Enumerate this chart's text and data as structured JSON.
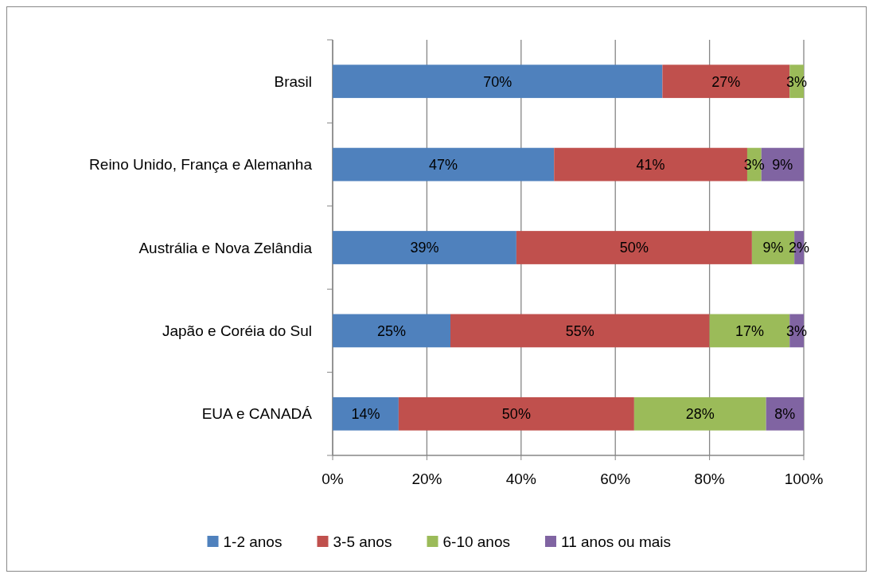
{
  "chart_data": {
    "type": "bar",
    "orientation": "horizontal",
    "stacked": true,
    "categories": [
      "Brasil",
      "Reino Unido, França e Alemanha",
      "Austrália e Nova Zelândia",
      "Japão e Coréia do Sul",
      "EUA e CANADÁ"
    ],
    "series": [
      {
        "name": "1-2 anos",
        "color": "#4f81bd",
        "values": [
          70,
          47,
          39,
          25,
          14
        ],
        "value_labels": [
          "70%",
          "47%",
          "39%",
          "25%",
          "14%"
        ]
      },
      {
        "name": "3-5 anos",
        "color": "#c0504d",
        "values": [
          27,
          41,
          50,
          55,
          50
        ],
        "value_labels": [
          "27%",
          "41%",
          "50%",
          "55%",
          "50%"
        ]
      },
      {
        "name": "6-10 anos",
        "color": "#9bbb59",
        "values": [
          3,
          3,
          9,
          17,
          28
        ],
        "value_labels": [
          "3%",
          "3%",
          "9%",
          "17%",
          "28%"
        ]
      },
      {
        "name": "11 anos ou mais",
        "color": "#8064a2",
        "values": [
          null,
          9,
          2,
          3,
          8
        ],
        "value_labels": [
          null,
          "9%",
          "2%",
          "3%",
          "8%"
        ]
      }
    ],
    "xlim": [
      0,
      100
    ],
    "xticks": [
      {
        "value": 0,
        "label": "0%"
      },
      {
        "value": 20,
        "label": "20%"
      },
      {
        "value": 40,
        "label": "40%"
      },
      {
        "value": 60,
        "label": "60%"
      },
      {
        "value": 80,
        "label": "80%"
      },
      {
        "value": 100,
        "label": "100%"
      }
    ],
    "grid": "x",
    "legend": "bottom"
  }
}
